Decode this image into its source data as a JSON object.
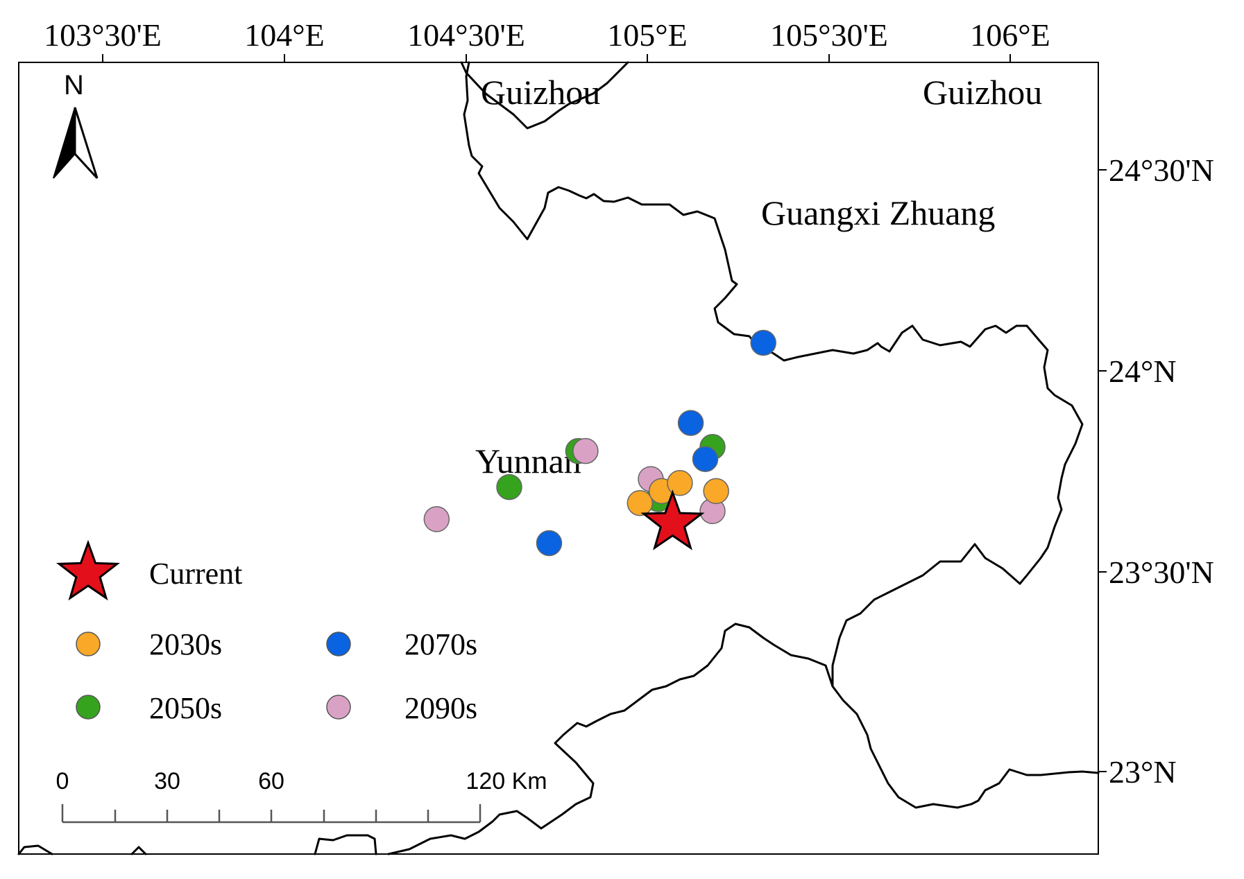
{
  "map": {
    "longitude_labels": [
      "103°30'E",
      "104°E",
      "104°30'E",
      "105°E",
      "105°30'E",
      "106°E"
    ],
    "latitude_labels": [
      "24°30'N",
      "24°N",
      "23°30'N",
      "23°N"
    ],
    "region_labels": {
      "guizhou_west": "Guizhou",
      "guizhou_east": "Guizhou",
      "guangxi": "Guangxi Zhuang",
      "yunnan": "Yunnan"
    },
    "north_arrow_label": "N",
    "legend": {
      "current": "Current",
      "s2030": "2030s",
      "s2050": "2050s",
      "s2070": "2070s",
      "s2090": "2090s"
    },
    "scale_bar": {
      "labels": [
        "0",
        "30",
        "60",
        "120 Km"
      ]
    },
    "colors": {
      "current": "#e3101b",
      "s2030": "#f9a828",
      "s2050": "#35a31e",
      "s2070": "#0a63e0",
      "s2090": "#d9a2c4",
      "boundary": "#000000"
    },
    "centroid": {
      "current": {
        "lon": 105.07,
        "lat": 23.62
      },
      "s2030": [
        {
          "lon": 104.98,
          "lat": 23.67
        },
        {
          "lon": 105.04,
          "lat": 23.7
        },
        {
          "lon": 105.09,
          "lat": 23.72
        },
        {
          "lon": 105.19,
          "lat": 23.7
        }
      ],
      "s2050": [
        {
          "lon": 104.62,
          "lat": 23.71
        },
        {
          "lon": 104.81,
          "lat": 23.8
        },
        {
          "lon": 105.03,
          "lat": 23.68
        },
        {
          "lon": 105.18,
          "lat": 23.81
        }
      ],
      "s2070": [
        {
          "lon": 104.73,
          "lat": 23.57
        },
        {
          "lon": 105.12,
          "lat": 23.87
        },
        {
          "lon": 105.16,
          "lat": 23.78
        },
        {
          "lon": 105.32,
          "lat": 24.07
        }
      ],
      "s2090": [
        {
          "lon": 104.42,
          "lat": 23.63
        },
        {
          "lon": 104.83,
          "lat": 23.8
        },
        {
          "lon": 105.01,
          "lat": 23.73
        },
        {
          "lon": 105.18,
          "lat": 23.65
        }
      ]
    }
  }
}
